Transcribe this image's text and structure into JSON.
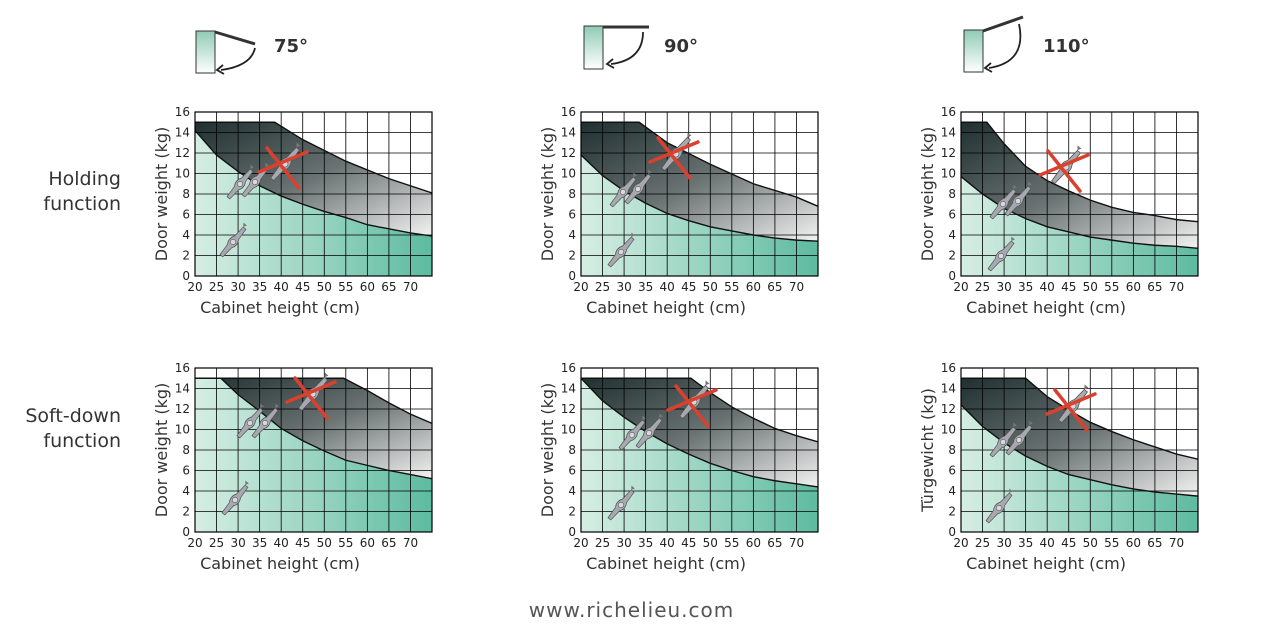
{
  "angles": [
    "75°",
    "90°",
    "110°"
  ],
  "row_labels": {
    "holding": [
      "Holding",
      "function"
    ],
    "softdown": [
      "Soft-down",
      "function"
    ]
  },
  "footer": "www.richelieu.com",
  "chart_data": [
    {
      "id": "holding-75",
      "type": "area",
      "xlabel": "Cabinet height (cm)",
      "ylabel": "Door weight (kg)",
      "xticks": [
        "20",
        "25",
        "30",
        "35",
        "40",
        "45",
        "50",
        "55",
        "60",
        "65",
        "70"
      ],
      "yticks": [
        "0",
        "2",
        "4",
        "6",
        "8",
        "10",
        "12",
        "14",
        "16"
      ],
      "xlim": [
        20,
        75
      ],
      "ylim": [
        0,
        16
      ],
      "upper_curve": [
        [
          20,
          15
        ],
        [
          38.5,
          15
        ],
        [
          45,
          13.3
        ],
        [
          55,
          11.2
        ],
        [
          65,
          9.5
        ],
        [
          75,
          8.1
        ]
      ],
      "lower_curve": [
        [
          20,
          14.2
        ],
        [
          25,
          11.8
        ],
        [
          30,
          10.2
        ],
        [
          35,
          8.8
        ],
        [
          40,
          7.8
        ],
        [
          45,
          7
        ],
        [
          50,
          6.3
        ],
        [
          55,
          5.7
        ],
        [
          60,
          5
        ],
        [
          65,
          4.6
        ],
        [
          70,
          4.2
        ],
        [
          75,
          3.9
        ]
      ]
    },
    {
      "id": "holding-90",
      "type": "area",
      "xlabel": "Cabinet height (cm)",
      "ylabel": "Door weight (kg)",
      "xticks": [
        "20",
        "25",
        "30",
        "35",
        "40",
        "45",
        "50",
        "55",
        "60",
        "65",
        "70"
      ],
      "yticks": [
        "0",
        "2",
        "4",
        "6",
        "8",
        "10",
        "12",
        "14",
        "16"
      ],
      "xlim": [
        20,
        75
      ],
      "ylim": [
        0,
        16
      ],
      "upper_curve": [
        [
          20,
          15
        ],
        [
          33.5,
          15
        ],
        [
          40,
          13
        ],
        [
          50,
          10.9
        ],
        [
          60,
          9
        ],
        [
          70,
          7.7
        ],
        [
          75,
          6.8
        ]
      ],
      "lower_curve": [
        [
          20,
          11.8
        ],
        [
          25,
          9.8
        ],
        [
          30,
          8.3
        ],
        [
          35,
          7.1
        ],
        [
          40,
          6.1
        ],
        [
          45,
          5.4
        ],
        [
          50,
          4.8
        ],
        [
          55,
          4.4
        ],
        [
          60,
          4
        ],
        [
          65,
          3.7
        ],
        [
          70,
          3.5
        ],
        [
          75,
          3.4
        ]
      ]
    },
    {
      "id": "holding-110",
      "type": "area",
      "xlabel": "Cabinet height (cm)",
      "ylabel": "Door weight (kg)",
      "xticks": [
        "20",
        "25",
        "30",
        "35",
        "40",
        "45",
        "50",
        "55",
        "60",
        "65",
        "70"
      ],
      "yticks": [
        "0",
        "2",
        "4",
        "6",
        "8",
        "10",
        "12",
        "14",
        "16"
      ],
      "xlim": [
        20,
        75
      ],
      "ylim": [
        0,
        16
      ],
      "upper_curve": [
        [
          20,
          15
        ],
        [
          26,
          15
        ],
        [
          30,
          12.9
        ],
        [
          35,
          10.7
        ],
        [
          40,
          9.3
        ],
        [
          45,
          8.3
        ],
        [
          50,
          7.4
        ],
        [
          55,
          6.7
        ],
        [
          60,
          6.2
        ],
        [
          65,
          5.9
        ],
        [
          70,
          5.5
        ],
        [
          75,
          5.3
        ]
      ],
      "lower_curve": [
        [
          20,
          9.7
        ],
        [
          25,
          8
        ],
        [
          30,
          6.6
        ],
        [
          35,
          5.6
        ],
        [
          40,
          4.8
        ],
        [
          45,
          4.3
        ],
        [
          50,
          3.8
        ],
        [
          55,
          3.5
        ],
        [
          60,
          3.2
        ],
        [
          65,
          3
        ],
        [
          70,
          2.9
        ],
        [
          75,
          2.7
        ]
      ]
    },
    {
      "id": "softdown-75",
      "type": "area",
      "xlabel": "Cabinet height (cm)",
      "ylabel": "Door weight (kg)",
      "xticks": [
        "20",
        "25",
        "30",
        "35",
        "40",
        "45",
        "50",
        "55",
        "60",
        "65",
        "70"
      ],
      "yticks": [
        "0",
        "2",
        "4",
        "6",
        "8",
        "10",
        "12",
        "14",
        "16"
      ],
      "xlim": [
        20,
        75
      ],
      "ylim": [
        0,
        16
      ],
      "upper_curve": [
        [
          20,
          15
        ],
        [
          54.5,
          15
        ],
        [
          60,
          13.8
        ],
        [
          65,
          12.6
        ],
        [
          70,
          11.5
        ],
        [
          75,
          10.6
        ]
      ],
      "lower_curve": [
        [
          20,
          15
        ],
        [
          26,
          15
        ],
        [
          30,
          13.4
        ],
        [
          35,
          11.8
        ],
        [
          40,
          10.1
        ],
        [
          45,
          8.9
        ],
        [
          50,
          7.9
        ],
        [
          55,
          7
        ],
        [
          60,
          6.5
        ],
        [
          65,
          6
        ],
        [
          70,
          5.6
        ],
        [
          75,
          5.2
        ]
      ]
    },
    {
      "id": "softdown-90",
      "type": "area",
      "xlabel": "Cabinet height (cm)",
      "ylabel": "Door weight (kg)",
      "xticks": [
        "20",
        "25",
        "30",
        "35",
        "40",
        "45",
        "50",
        "55",
        "60",
        "65",
        "70"
      ],
      "yticks": [
        "0",
        "2",
        "4",
        "6",
        "8",
        "10",
        "12",
        "14",
        "16"
      ],
      "xlim": [
        20,
        75
      ],
      "ylim": [
        0,
        16
      ],
      "upper_curve": [
        [
          20,
          15
        ],
        [
          45.5,
          15
        ],
        [
          50,
          13.6
        ],
        [
          55,
          12.2
        ],
        [
          60,
          11.1
        ],
        [
          65,
          10.1
        ],
        [
          70,
          9.4
        ],
        [
          75,
          8.8
        ]
      ],
      "lower_curve": [
        [
          20,
          15
        ],
        [
          25,
          12.8
        ],
        [
          30,
          11.2
        ],
        [
          35,
          9.8
        ],
        [
          40,
          8.6
        ],
        [
          45,
          7.6
        ],
        [
          50,
          6.7
        ],
        [
          55,
          6
        ],
        [
          60,
          5.4
        ],
        [
          65,
          5
        ],
        [
          70,
          4.7
        ],
        [
          75,
          4.4
        ]
      ]
    },
    {
      "id": "softdown-110",
      "type": "area",
      "xlabel": "Cabinet height (cm)",
      "ylabel": "Türgewicht (kg)",
      "xticks": [
        "20",
        "25",
        "30",
        "35",
        "40",
        "45",
        "50",
        "55",
        "60",
        "65",
        "70"
      ],
      "yticks": [
        "0",
        "2",
        "4",
        "6",
        "8",
        "10",
        "12",
        "14",
        "16"
      ],
      "xlim": [
        20,
        75
      ],
      "ylim": [
        0,
        16
      ],
      "upper_curve": [
        [
          20,
          15
        ],
        [
          35,
          15
        ],
        [
          40,
          13.2
        ],
        [
          45,
          11.9
        ],
        [
          50,
          10.7
        ],
        [
          55,
          9.8
        ],
        [
          60,
          9
        ],
        [
          65,
          8.3
        ],
        [
          70,
          7.6
        ],
        [
          75,
          7.1
        ]
      ],
      "lower_curve": [
        [
          20,
          12.4
        ],
        [
          25,
          10.3
        ],
        [
          30,
          8.7
        ],
        [
          35,
          7.4
        ],
        [
          40,
          6.4
        ],
        [
          45,
          5.6
        ],
        [
          50,
          5.1
        ],
        [
          55,
          4.6
        ],
        [
          60,
          4.2
        ],
        [
          65,
          3.9
        ],
        [
          70,
          3.7
        ],
        [
          75,
          3.5
        ]
      ]
    }
  ]
}
